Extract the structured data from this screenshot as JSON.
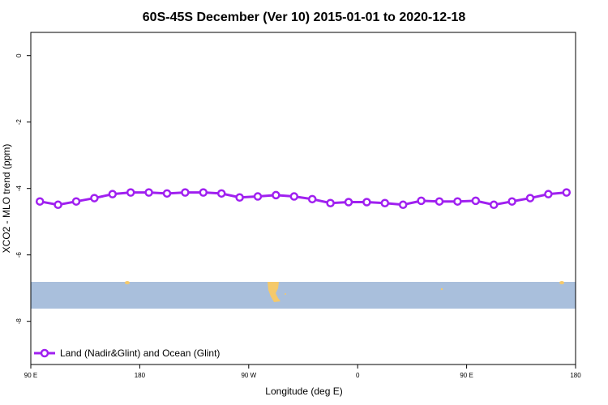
{
  "chart_data": {
    "type": "line",
    "title": "60S-45S December (Ver 10)   2015-01-01 to 2020-12-18",
    "x_label": "Longitude (deg E)",
    "y_label": "XCO2 - MLO trend (ppm)",
    "xlim": [
      90,
      540
    ],
    "xticks": [
      {
        "value": 90,
        "label": "90 E"
      },
      180,
      {
        "value": 270,
        "label": "90 W"
      },
      {
        "value": 360,
        "label": "0"
      },
      {
        "value": 450,
        "label": "90 E"
      },
      {
        "value": 540,
        "label": "180"
      }
    ],
    "ylim": [
      -9.3,
      0.7
    ],
    "yticks": [
      0,
      -2,
      -4,
      -6,
      -8
    ],
    "legend": "bottom-left",
    "x": [
      97.5,
      112.5,
      127.5,
      142.5,
      157.5,
      172.5,
      187.5,
      202.5,
      217.5,
      232.5,
      247.5,
      262.5,
      277.5,
      292.5,
      307.5,
      322.5,
      337.5,
      352.5,
      367.5,
      382.5,
      397.5,
      412.5,
      427.5,
      442.5,
      457.5,
      472.5,
      487.5,
      502.5,
      517.5,
      532.5
    ],
    "series": [
      {
        "name": "Land (Nadir&Glint) and Ocean (Glint)",
        "color": "#a020f0",
        "values": [
          -4.39,
          -4.49,
          -4.39,
          -4.29,
          -4.17,
          -4.12,
          -4.12,
          -4.15,
          -4.12,
          -4.12,
          -4.15,
          -4.27,
          -4.24,
          -4.2,
          -4.24,
          -4.32,
          -4.44,
          -4.41,
          -4.41,
          -4.44,
          -4.49,
          -4.37,
          -4.39,
          -4.39,
          -4.37,
          -4.49,
          -4.39,
          -4.29,
          -4.17,
          -4.12
        ]
      }
    ]
  }
}
